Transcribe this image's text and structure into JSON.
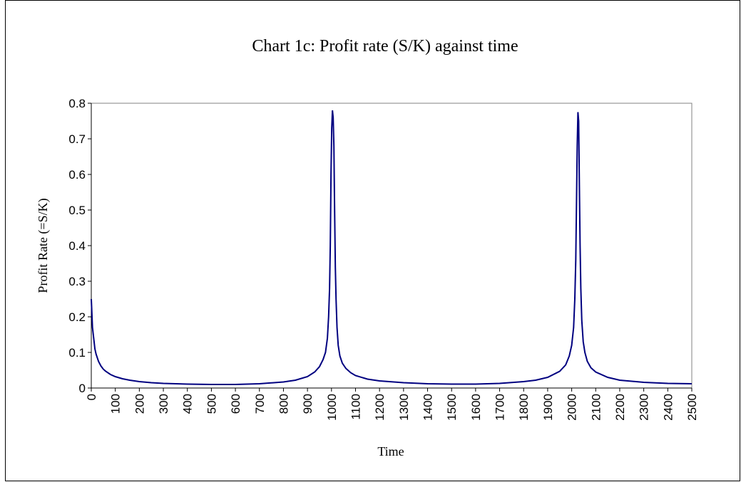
{
  "chart_data": {
    "type": "line",
    "title": "Chart 1c: Profit rate (S/K) against time",
    "x_label": "Time",
    "y_label": "Profit Rate (=S/K)",
    "color": "#000080",
    "xlim": [
      0,
      2500
    ],
    "xticks": [
      0,
      100,
      200,
      300,
      400,
      500,
      600,
      700,
      800,
      900,
      1000,
      1100,
      1200,
      1300,
      1400,
      1500,
      1600,
      1700,
      1800,
      1900,
      2000,
      2100,
      2200,
      2300,
      2400,
      2500
    ],
    "ylim": [
      0,
      0.8
    ],
    "yticks": [
      0,
      0.1,
      0.2,
      0.3,
      0.4,
      0.5,
      0.6,
      0.7,
      0.8
    ],
    "x": [
      0,
      5,
      10,
      15,
      20,
      30,
      40,
      50,
      60,
      80,
      100,
      130,
      160,
      200,
      250,
      300,
      400,
      500,
      600,
      700,
      800,
      850,
      900,
      930,
      950,
      965,
      975,
      983,
      988,
      992,
      995,
      998,
      1001,
      1004,
      1007,
      1010,
      1013,
      1016,
      1019,
      1023,
      1028,
      1035,
      1045,
      1060,
      1080,
      1100,
      1150,
      1200,
      1300,
      1400,
      1500,
      1600,
      1700,
      1800,
      1850,
      1900,
      1950,
      1975,
      1990,
      2000,
      2008,
      2013,
      2017,
      2020,
      2023,
      2026,
      2029,
      2032,
      2035,
      2038,
      2042,
      2048,
      2055,
      2065,
      2080,
      2100,
      2150,
      2200,
      2300,
      2400,
      2500
    ],
    "values": [
      0.25,
      0.17,
      0.14,
      0.11,
      0.095,
      0.075,
      0.062,
      0.053,
      0.047,
      0.038,
      0.032,
      0.026,
      0.022,
      0.018,
      0.015,
      0.013,
      0.011,
      0.01,
      0.01,
      0.012,
      0.017,
      0.022,
      0.032,
      0.045,
      0.06,
      0.08,
      0.1,
      0.14,
      0.2,
      0.28,
      0.4,
      0.6,
      0.73,
      0.78,
      0.76,
      0.68,
      0.5,
      0.34,
      0.25,
      0.17,
      0.12,
      0.09,
      0.07,
      0.055,
      0.043,
      0.035,
      0.025,
      0.02,
      0.015,
      0.012,
      0.011,
      0.011,
      0.013,
      0.018,
      0.022,
      0.03,
      0.047,
      0.065,
      0.09,
      0.12,
      0.17,
      0.25,
      0.36,
      0.52,
      0.68,
      0.775,
      0.75,
      0.57,
      0.4,
      0.28,
      0.19,
      0.13,
      0.1,
      0.075,
      0.057,
      0.045,
      0.03,
      0.022,
      0.016,
      0.013,
      0.012
    ]
  }
}
